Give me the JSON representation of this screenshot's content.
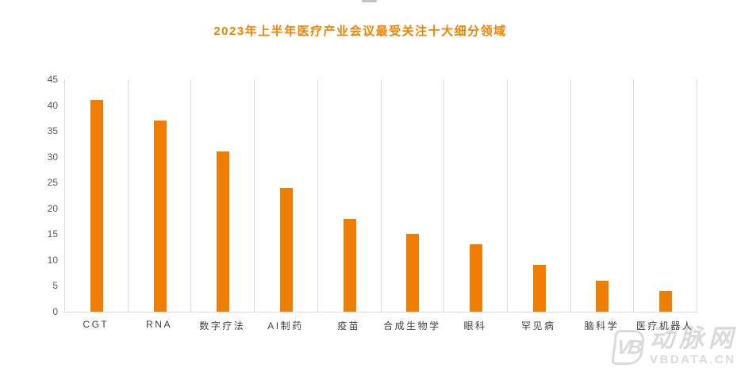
{
  "chart_data": {
    "type": "bar",
    "title": "2023年上半年医疗产业会议最受关注十大细分领域",
    "categories": [
      "CGT",
      "RNA",
      "数字疗法",
      "AI制药",
      "疫苗",
      "合成生物学",
      "眼科",
      "罕见病",
      "脑科学",
      "医疗机器人"
    ],
    "values": [
      41,
      37,
      31,
      24,
      18,
      15,
      13,
      9,
      6,
      4
    ],
    "xlabel": "",
    "ylabel": "",
    "ylim": [
      0,
      45
    ],
    "yticks": [
      0,
      5,
      10,
      15,
      20,
      25,
      30,
      35,
      40,
      45
    ],
    "grid": "vertical-category-separators-only",
    "legend": "none",
    "bar_color": "#EF7D00"
  },
  "colors": {
    "accent_orange": "#EF7D00",
    "title_orange": "#F08200",
    "gridline_gray": "#D9D9D9",
    "axis_label_gray": "#595959",
    "category_label_gray": "#404040",
    "watermark_gray": "#DADADA"
  },
  "watermark": {
    "logo": "VB",
    "brand": "动脉网",
    "domain": "VBDATA.CN"
  }
}
